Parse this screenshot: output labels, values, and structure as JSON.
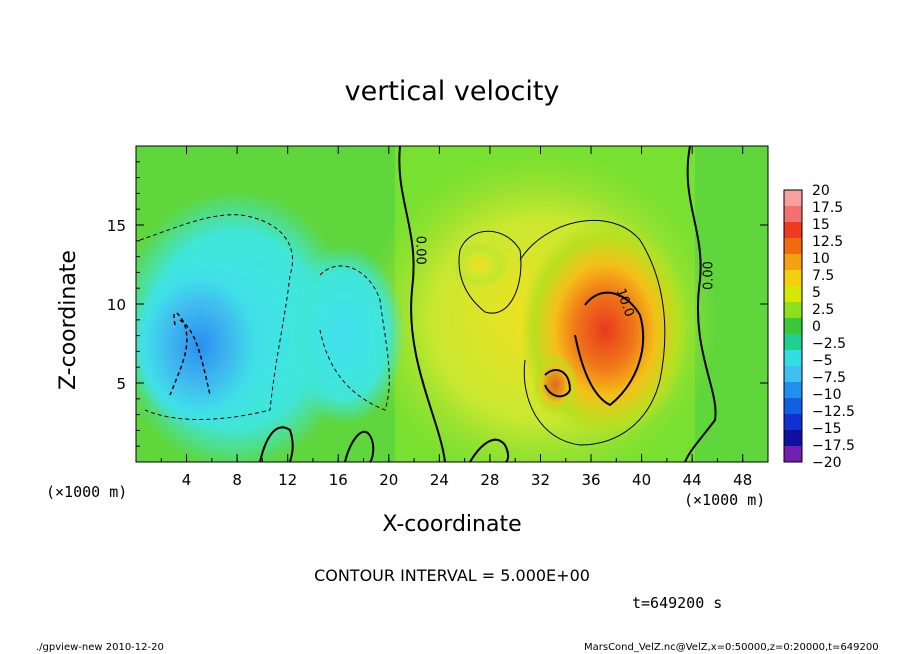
{
  "footer": {
    "left": "./gpview-new  2010-12-20",
    "right": "MarsCond_VelZ.nc@VelZ,x=0:50000,z=0:20000,t=649200"
  },
  "notes": {
    "contour_interval": "CONTOUR INTERVAL = 5.000E+00",
    "time": "t=649200 s",
    "x_unit_left": "(×1000 m)",
    "x_unit_right": "(×1000 m)"
  },
  "chart_data": {
    "type": "heatmap",
    "title": "vertical velocity",
    "xlabel": "X-coordinate",
    "ylabel": "Z-coordinate",
    "xlim": [
      0,
      50
    ],
    "ylim": [
      0,
      20
    ],
    "x_ticks": [
      "4",
      "8",
      "12",
      "16",
      "20",
      "24",
      "28",
      "32",
      "36",
      "40",
      "44",
      "48"
    ],
    "y_ticks": [
      "5",
      "10",
      "15"
    ],
    "contour_labels": [
      "0.00",
      "10.0",
      "0.00"
    ],
    "colorbar": {
      "labels": [
        "20",
        "17.5",
        "15",
        "12.5",
        "10",
        "7.5",
        "5",
        "2.5",
        "0",
        "−2.5",
        "−5",
        "−7.5",
        "−10",
        "−12.5",
        "−15",
        "−17.5",
        "−20"
      ],
      "colors": [
        "#f7a0a0",
        "#f27070",
        "#ee3a22",
        "#f06a10",
        "#f4a010",
        "#f4d010",
        "#d4e800",
        "#8ce020",
        "#38c838",
        "#20d090",
        "#30e0e0",
        "#40c0f0",
        "#2090f0",
        "#1060e0",
        "#1030d0",
        "#1010a0",
        "#7020b0"
      ]
    },
    "field_centers": [
      {
        "x": 5,
        "z": 7,
        "w": -12
      },
      {
        "x": 15,
        "z": 8,
        "w": -4
      },
      {
        "x": 38,
        "z": 8.5,
        "w": 14
      },
      {
        "x": 30,
        "z": 11,
        "w": 6
      },
      {
        "x": 28,
        "z": 4,
        "w": 4
      }
    ]
  }
}
